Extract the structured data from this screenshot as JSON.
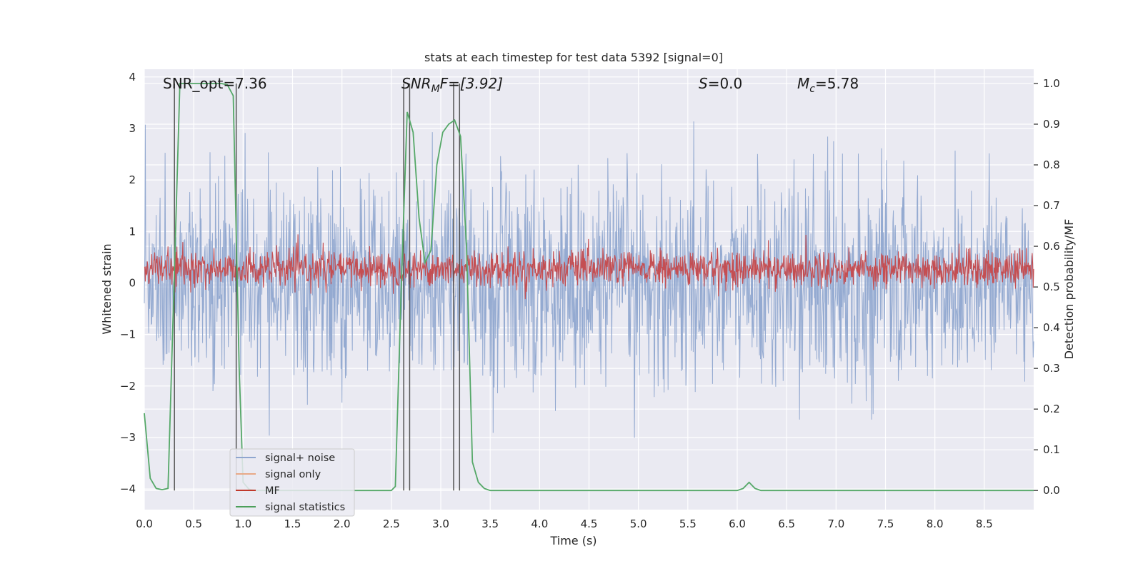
{
  "chart_data": {
    "type": "line",
    "title": "stats at each timestep for test data 5392 [signal=0]",
    "xlabel": "Time (s)",
    "ylabel_left": "Whitened strain",
    "ylabel_right": "Detection probability/MF",
    "xlim": [
      0.0,
      9.0
    ],
    "ylim_left": [
      -4.4,
      4.15
    ],
    "ylim_right": [
      -0.047,
      1.035
    ],
    "x_ticks": [
      "0.0",
      "0.5",
      "1.0",
      "1.5",
      "2.0",
      "2.5",
      "3.0",
      "3.5",
      "4.0",
      "4.5",
      "5.0",
      "5.5",
      "6.0",
      "6.5",
      "7.0",
      "7.5",
      "8.0",
      "8.5"
    ],
    "y_ticks_left": [
      "−4",
      "−3",
      "−2",
      "−1",
      "0",
      "1",
      "2",
      "3",
      "4"
    ],
    "y_ticks_right": [
      "0.0",
      "0.1",
      "0.2",
      "0.3",
      "0.4",
      "0.5",
      "0.6",
      "0.7",
      "0.8",
      "0.9",
      "1.0"
    ],
    "annotations": {
      "snr_opt": "SNR_opt=7.36",
      "snr_mf_main": "SNR",
      "snr_mf_sub": "M",
      "snr_mf_rest": "F=[3.92]",
      "s_italic": "S",
      "s_rest": "=0.0",
      "mc_italic": "M",
      "mc_sub": "c",
      "mc_rest": "=5.78"
    },
    "legend": [
      {
        "label": "signal+ noise",
        "color": "#8fa6cf"
      },
      {
        "label": "signal only",
        "color": "#e8a987"
      },
      {
        "label": "MF",
        "color": "#c0392b"
      },
      {
        "label": "signal statistics",
        "color": "#4c9f5a"
      }
    ],
    "series": [
      {
        "name": "signal+ noise",
        "axis": "left",
        "style": "noise band",
        "sample_rate_hz": 200,
        "amplitude_std": 1.0,
        "color": "#8fa6cf"
      },
      {
        "name": "MF",
        "axis": "right",
        "style": "noise band",
        "sample_rate_hz": 200,
        "mean": 0.545,
        "amplitude_std": 0.022,
        "color": "#c44e52"
      },
      {
        "name": "signal statistics",
        "axis": "right",
        "color": "#55a868",
        "x": [
          0.0,
          0.06,
          0.12,
          0.18,
          0.24,
          0.3,
          0.36,
          0.42,
          0.48,
          0.54,
          0.6,
          0.66,
          0.72,
          0.78,
          0.84,
          0.9,
          0.96,
          1.0,
          1.06,
          1.12,
          1.5,
          2.0,
          2.5,
          2.54,
          2.6,
          2.66,
          2.72,
          2.78,
          2.84,
          2.9,
          2.96,
          3.02,
          3.08,
          3.14,
          3.2,
          3.26,
          3.32,
          3.38,
          3.44,
          3.5,
          4.0,
          5.0,
          6.0,
          6.06,
          6.12,
          6.18,
          6.24,
          6.5,
          7.0,
          8.0,
          9.0
        ],
        "y": [
          0.19,
          0.03,
          0.005,
          0.002,
          0.005,
          0.5,
          1.0,
          1.0,
          1.0,
          1.0,
          1.0,
          1.0,
          1.0,
          1.0,
          0.997,
          0.97,
          0.3,
          0.02,
          0.003,
          0.0,
          0.0,
          0.0,
          0.0,
          0.01,
          0.5,
          0.93,
          0.88,
          0.67,
          0.56,
          0.59,
          0.8,
          0.88,
          0.9,
          0.91,
          0.87,
          0.6,
          0.07,
          0.02,
          0.005,
          0.0,
          0.0,
          0.0,
          0.0,
          0.005,
          0.02,
          0.005,
          0.0,
          0.0,
          0.0,
          0.0,
          0.0
        ]
      }
    ],
    "vertical_lines_x": [
      0.305,
      0.93,
      2.625,
      2.685,
      3.13,
      3.19
    ],
    "vertical_lines_y_range_right": [
      0.0,
      1.0
    ]
  }
}
